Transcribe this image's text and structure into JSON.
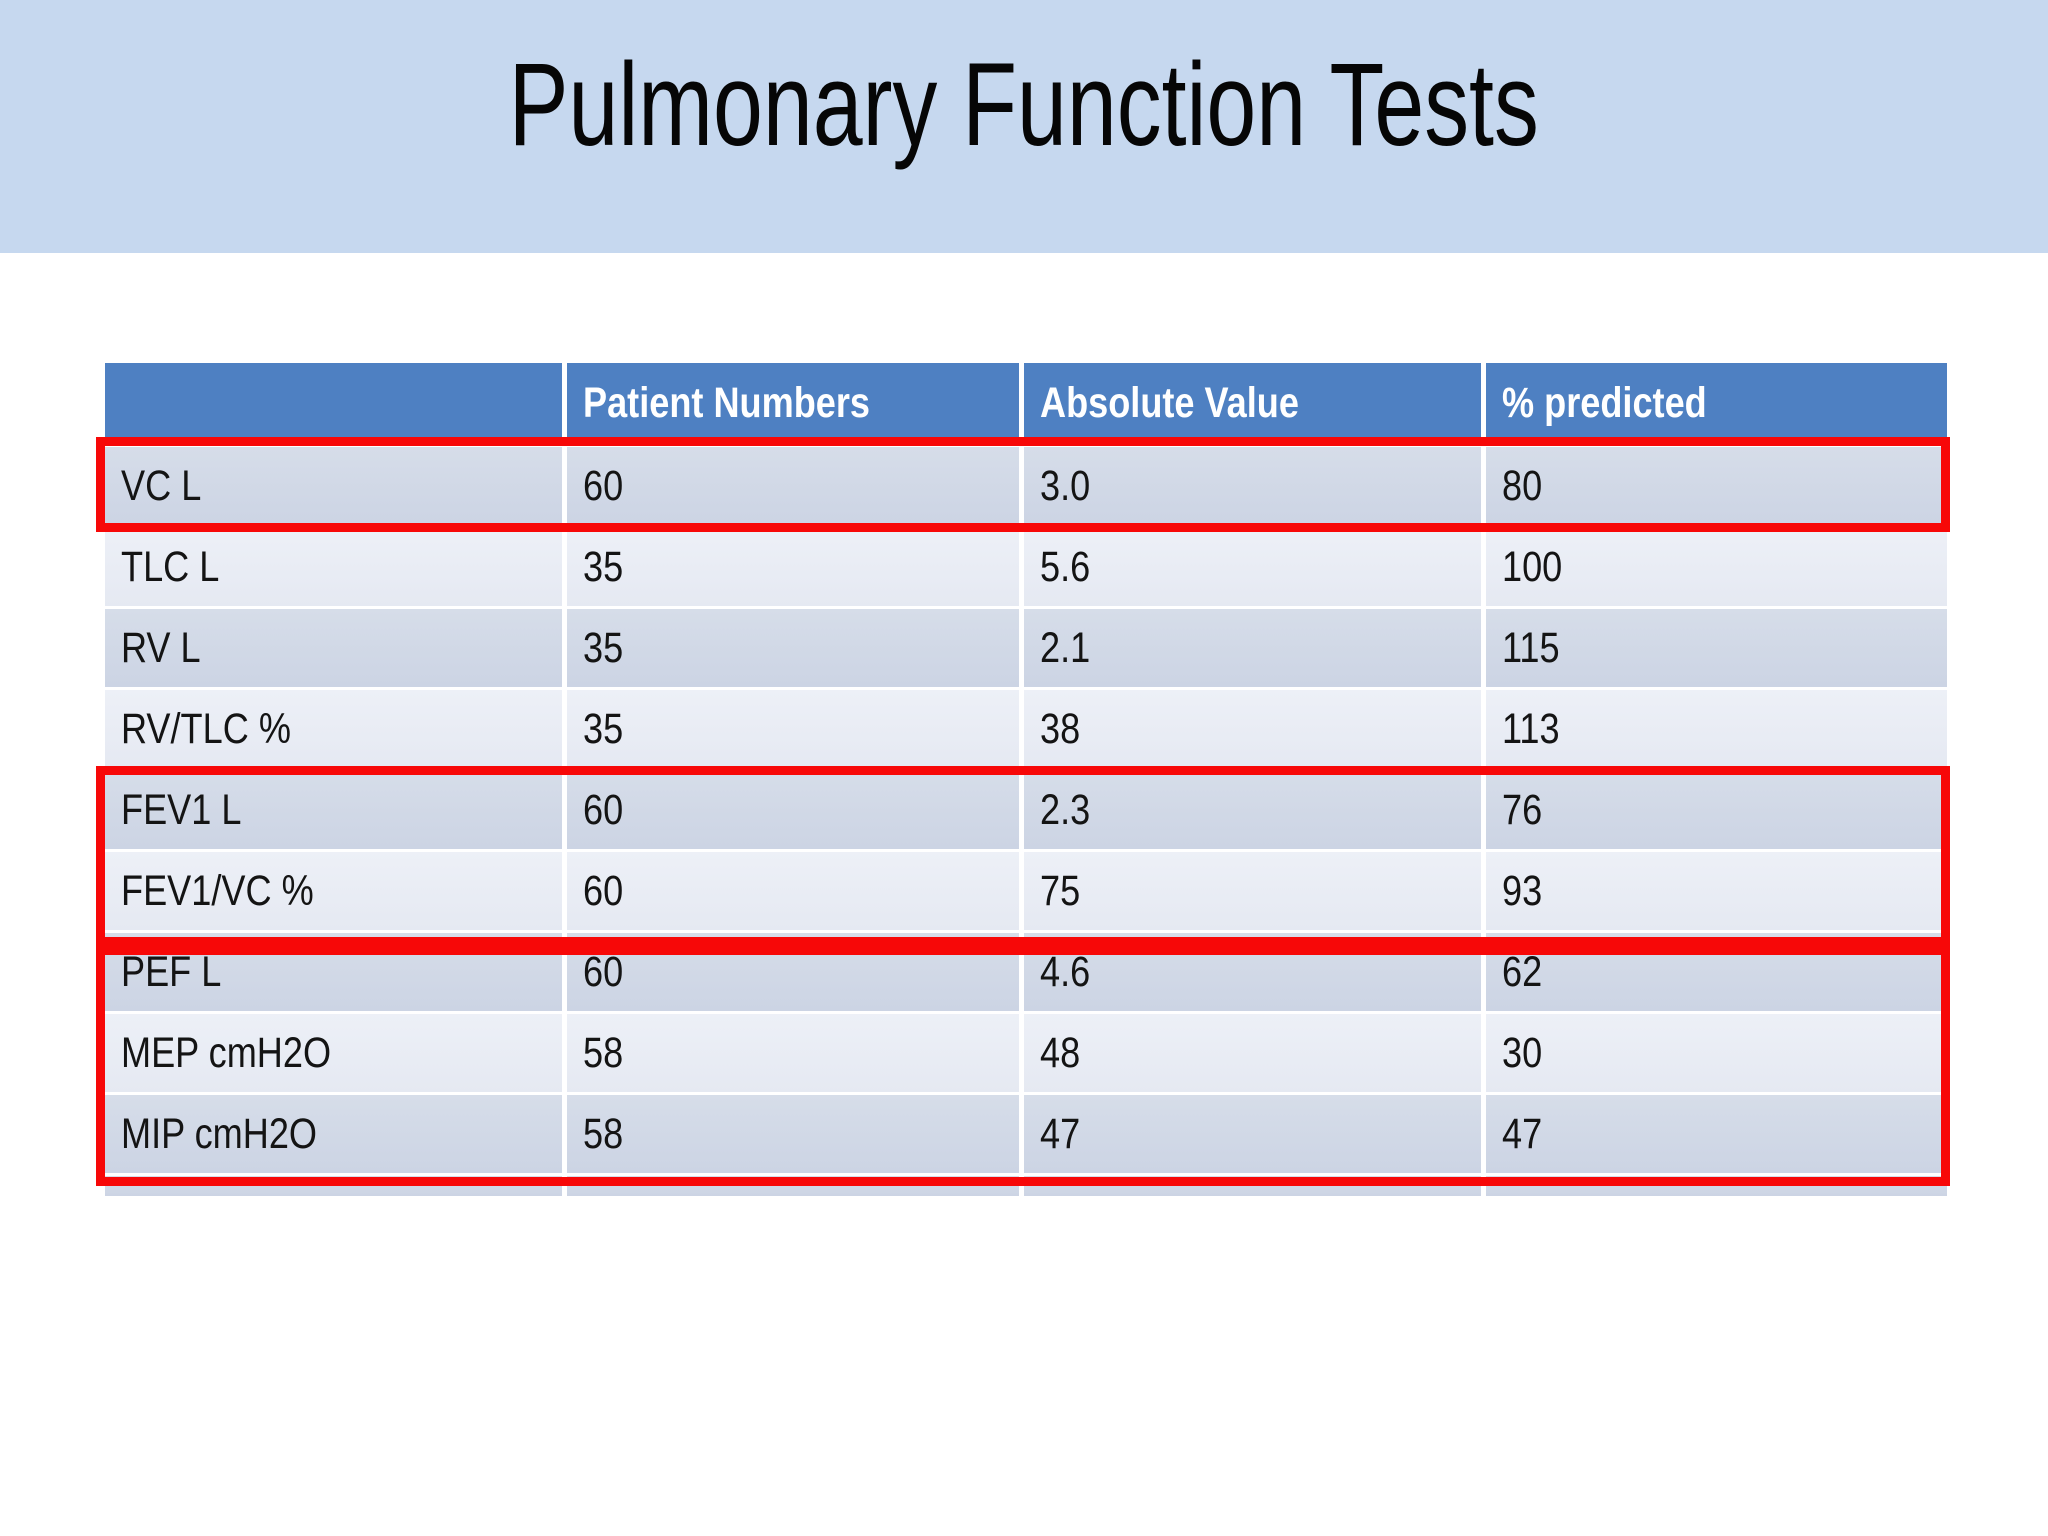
{
  "slide": {
    "title": "Pulmonary Function Tests",
    "background_color": "#ffffff",
    "title_band_color": "#c6d8ef"
  },
  "table": {
    "columns": [
      "",
      "Patient Numbers",
      "Absolute Value",
      "% predicted"
    ],
    "rows": [
      {
        "label": "VC L",
        "patient_numbers": "60",
        "absolute_value": "3.0",
        "percent_predicted": "80"
      },
      {
        "label": "TLC L",
        "patient_numbers": "35",
        "absolute_value": "5.6",
        "percent_predicted": "100"
      },
      {
        "label": "RV L",
        "patient_numbers": "35",
        "absolute_value": "2.1",
        "percent_predicted": "115"
      },
      {
        "label": "RV/TLC %",
        "patient_numbers": "35",
        "absolute_value": "38",
        "percent_predicted": "113"
      },
      {
        "label": "FEV1 L",
        "patient_numbers": "60",
        "absolute_value": "2.3",
        "percent_predicted": "76"
      },
      {
        "label": "FEV1/VC %",
        "patient_numbers": "60",
        "absolute_value": "75",
        "percent_predicted": "93"
      },
      {
        "label": "PEF L",
        "patient_numbers": "60",
        "absolute_value": "4.6",
        "percent_predicted": "62"
      },
      {
        "label": "MEP cmH2O",
        "patient_numbers": "58",
        "absolute_value": "48",
        "percent_predicted": "30"
      },
      {
        "label": "MIP cmH2O",
        "patient_numbers": "58",
        "absolute_value": "47",
        "percent_predicted": "47"
      }
    ],
    "colors": {
      "header_background": "#4e80c2",
      "row_dark": "#ccd4e4",
      "row_light": "#e5e9f2",
      "header_text": "#ffffff",
      "body_text": "#141414"
    }
  },
  "highlights": {
    "color": "#f70808",
    "boxes": [
      {
        "name": "vc-row-highlight",
        "covers": "VC L"
      },
      {
        "name": "fev1-rows-highlight",
        "covers": "FEV1 L, FEV1/VC %"
      },
      {
        "name": "pef-mep-mip-rows-highlight",
        "covers": "PEF L, MEP cmH2O, MIP cmH2O"
      }
    ]
  }
}
